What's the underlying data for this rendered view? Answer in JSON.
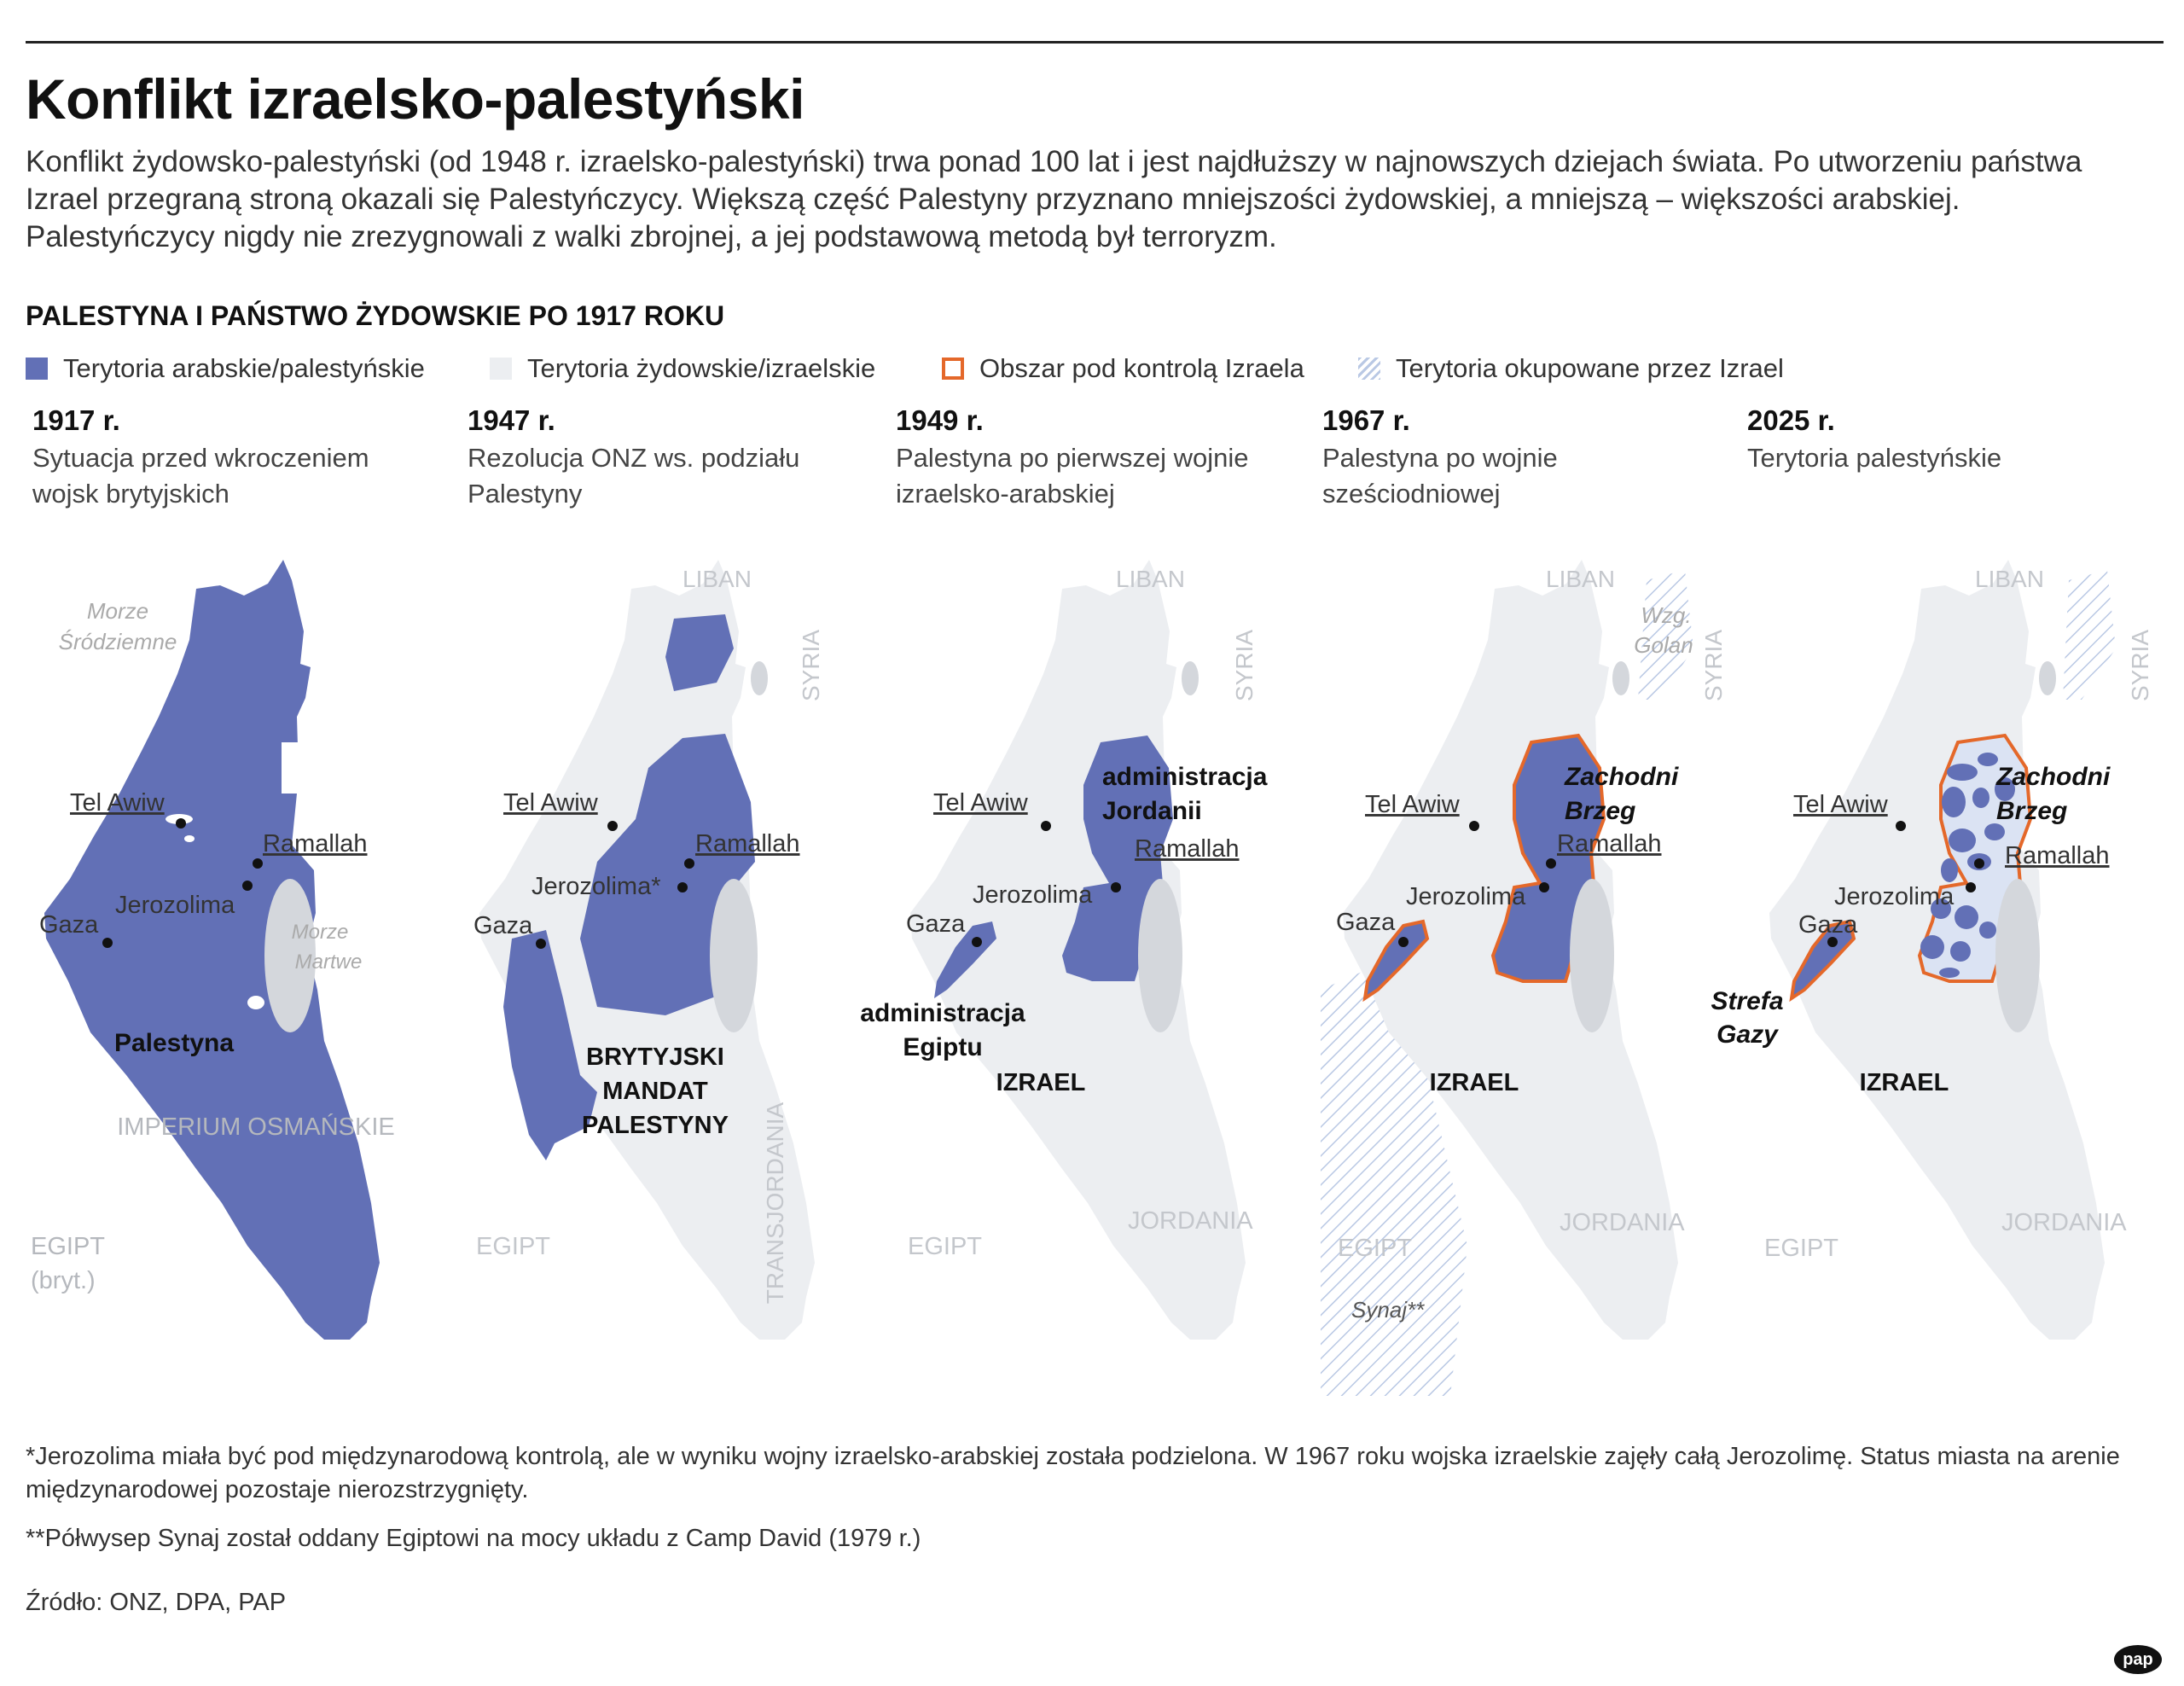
{
  "title": "Konflikt izraelsko-palestyński",
  "intro": "Konflikt żydowsko-palestyński (od 1948 r. izraelsko-palestyński) trwa ponad 100 lat i jest najdłuższy w najnowszych dziejach świata. Po utworzeniu państwa Izrael przegraną stroną okazali się Palestyńczycy. Większą część Palestyny przyznano mniejszości żydowskiej, a mniejszą – większości arabskiej. Palestyńczycy nigdy nie zrezygnowali z walki zbrojnej, a jej podstawową metodą był terroryzm.",
  "subtitle": "PALESTYNA I PAŃSTWO ŻYDOWSKIE PO 1917 ROKU",
  "colors": {
    "palestinian": "#6270b6",
    "israeli": "#eceef1",
    "control_outline": "#e4682a",
    "occupied_hatch": "#b9c8e4",
    "neighbor_label": "#c4c7cc",
    "water": "#d4d7dc"
  },
  "legend": {
    "palestinian": "Terytoria arabskie/palestyńskie",
    "israeli": "Terytoria żydowskie/izraelskie",
    "control": "Obszar pod kontrolą Izraela",
    "occupied": "Terytoria okupowane przez Izrael"
  },
  "periods": [
    {
      "year": "1917 r.",
      "desc": "Sytuacja przed wkroczeniem wojsk brytyjskich"
    },
    {
      "year": "1947 r.",
      "desc": "Rezolucja ONZ ws. podziału Palestyny"
    },
    {
      "year": "1949 r.",
      "desc": "Palestyna po pierwszej wojnie izraelsko-arabskiej"
    },
    {
      "year": "1967 r.",
      "desc": "Palestyna po wojnie sześciodniowej"
    },
    {
      "year": "2025 r.",
      "desc": "Terytoria palestyńskie"
    }
  ],
  "map_labels": {
    "m1": {
      "sea1": "Morze",
      "sea2": "Śródziemne",
      "telaviv": "Tel Awiw",
      "ramallah": "Ramallah",
      "jerusalem": "Jerozolima",
      "gaza": "Gaza",
      "dead1": "Morze",
      "dead2": "Martwe",
      "palestine": "Palestyna",
      "empire": "IMPERIUM OSMAŃSKIE",
      "egypt": "EGIPT",
      "egypt_note": "(bryt.)"
    },
    "m2": {
      "lebanon": "LIBAN",
      "syria": "SYRIA",
      "telaviv": "Tel Awiw",
      "ramallah": "Ramallah",
      "jerusalem": "Jerozolima*",
      "gaza": "Gaza",
      "mandate1": "BRYTYJSKI",
      "mandate2": "MANDAT",
      "mandate3": "PALESTYNY",
      "transjordan": "TRANSJORDANIA",
      "egypt": "EGIPT"
    },
    "m3": {
      "lebanon": "LIBAN",
      "syria": "SYRIA",
      "telaviv": "Tel Awiw",
      "ramallah": "Ramallah",
      "jerusalem": "Jerozolima",
      "gaza": "Gaza",
      "jordan_admin1": "administracja",
      "jordan_admin2": "Jordanii",
      "egypt_admin1": "administracja",
      "egypt_admin2": "Egiptu",
      "israel": "IZRAEL",
      "jordan": "JORDANIA",
      "egypt": "EGIPT"
    },
    "m4": {
      "lebanon": "LIBAN",
      "syria": "SYRIA",
      "golan1": "Wzg.",
      "golan2": "Golan",
      "telaviv": "Tel Awiw",
      "ramallah": "Ramallah",
      "jerusalem": "Jerozolima",
      "gaza": "Gaza",
      "wb1": "Zachodni",
      "wb2": "Brzeg",
      "israel": "IZRAEL",
      "jordan": "JORDANIA",
      "egypt": "EGIPT",
      "sinai": "Synaj**"
    },
    "m5": {
      "lebanon": "LIBAN",
      "syria": "SYRIA",
      "telaviv": "Tel Awiw",
      "ramallah": "Ramallah",
      "jerusalem": "Jerozolima",
      "gaza": "Gaza",
      "wb1": "Zachodni",
      "wb2": "Brzeg",
      "strip1": "Strefa",
      "strip2": "Gazy",
      "israel": "IZRAEL",
      "jordan": "JORDANIA",
      "egypt": "EGIPT"
    }
  },
  "footnotes": [
    "*Jerozolima miała być pod międzynarodową kontrolą, ale w wyniku wojny izraelsko-arabskiej została podzielona. W 1967 roku wojska izraelskie zajęły całą Jerozolimę. Status miasta na arenie międzynarodowej pozostaje nierozstrzygnięty.",
    "**Półwysep Synaj został oddany Egiptowi na mocy układu z Camp David (1979 r.)"
  ],
  "source": "Źródło: ONZ, DPA, PAP",
  "logo": "pap"
}
